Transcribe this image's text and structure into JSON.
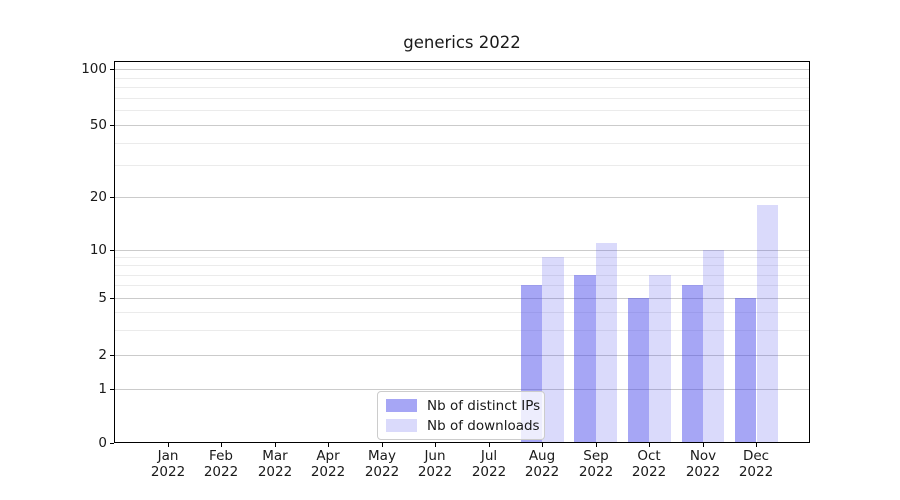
{
  "chart_data": {
    "type": "bar",
    "title": "generics 2022",
    "categories": [
      "Jan",
      "Feb",
      "Mar",
      "Apr",
      "May",
      "Jun",
      "Jul",
      "Aug",
      "Sep",
      "Oct",
      "Nov",
      "Dec"
    ],
    "category_year": "2022",
    "series": [
      {
        "name": "Nb of distinct IPs",
        "base_color": "#4646eb",
        "alpha": 0.48,
        "effective_color": "#a6a6f5",
        "values": [
          0,
          0,
          0,
          0,
          0,
          0,
          0,
          6,
          7,
          5,
          6,
          5
        ]
      },
      {
        "name": "Nb of downloads",
        "base_color": "#4646eb",
        "alpha": 0.2,
        "effective_color": "#dbdbfa",
        "values": [
          0,
          0,
          0,
          0,
          0,
          0,
          0,
          9,
          11,
          7,
          10,
          18
        ]
      }
    ],
    "yscale": "symlog",
    "ylim": [
      0,
      110
    ],
    "y_tick_labels": [
      "100",
      "50",
      "20",
      "10",
      "5",
      "2",
      "1",
      "0"
    ],
    "y_major_gridline_values": [
      1,
      2,
      5,
      10,
      20,
      50,
      100
    ],
    "y_minor_gridline_values": [
      3,
      4,
      6,
      7,
      8,
      9,
      30,
      40,
      60,
      70,
      80,
      90
    ],
    "grid": "horizontal",
    "legend_position": "lower center",
    "xlabel": "",
    "ylabel": ""
  },
  "legend": {
    "entries": [
      "Nb of distinct IPs",
      "Nb of downloads"
    ]
  },
  "colors": {
    "background": "#ffffff",
    "bar_distinct_ips": "#a6a6f5",
    "bar_downloads": "#dbdbfa",
    "grid_major": "#cbcbcb",
    "grid_minor": "#ebebeb",
    "axis": "#000000",
    "text": "#1a1a1a",
    "legend_border": "#cccccc"
  }
}
